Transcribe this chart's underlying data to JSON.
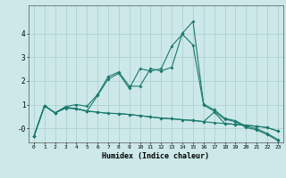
{
  "bg_color": "#cce8e8",
  "line_color": "#1a7a6e",
  "grid_color": "#aacccc",
  "xlabel": "Humidex (Indice chaleur)",
  "xlim": [
    -0.5,
    23.5
  ],
  "ylim": [
    -0.6,
    5.2
  ],
  "x_ticks": [
    0,
    1,
    2,
    3,
    4,
    5,
    6,
    7,
    8,
    9,
    10,
    11,
    12,
    13,
    14,
    15,
    16,
    17,
    18,
    19,
    20,
    21,
    22,
    23
  ],
  "y_ticks": [
    0,
    1,
    2,
    3,
    4
  ],
  "y_tick_labels": [
    "-0",
    "1",
    "2",
    "3",
    "4"
  ],
  "series": [
    [
      -0.35,
      0.95,
      0.65,
      0.85,
      0.82,
      0.73,
      0.68,
      0.63,
      0.62,
      0.58,
      0.53,
      0.48,
      0.43,
      0.4,
      0.36,
      0.33,
      0.28,
      0.23,
      0.2,
      0.16,
      0.13,
      0.08,
      0.03,
      -0.12
    ],
    [
      -0.35,
      0.95,
      0.65,
      0.92,
      1.0,
      0.93,
      1.42,
      2.18,
      2.38,
      1.78,
      1.78,
      2.52,
      2.42,
      2.58,
      4.02,
      4.52,
      1.02,
      0.78,
      0.42,
      0.32,
      0.08,
      -0.02,
      -0.22,
      -0.48
    ],
    [
      -0.35,
      0.95,
      0.65,
      0.88,
      0.83,
      0.72,
      1.38,
      2.08,
      2.32,
      1.68,
      2.52,
      2.42,
      2.52,
      3.48,
      3.98,
      3.52,
      0.98,
      0.72,
      0.38,
      0.28,
      0.03,
      -0.07,
      -0.27,
      -0.52
    ],
    [
      -0.35,
      0.95,
      0.65,
      0.88,
      0.83,
      0.72,
      0.68,
      0.63,
      0.62,
      0.58,
      0.53,
      0.48,
      0.43,
      0.4,
      0.36,
      0.33,
      0.28,
      0.68,
      0.2,
      0.16,
      0.13,
      0.08,
      0.03,
      -0.12
    ]
  ]
}
